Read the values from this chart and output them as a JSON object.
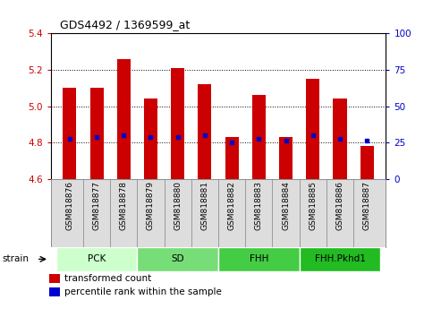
{
  "title": "GDS4492 / 1369599_at",
  "samples": [
    "GSM818876",
    "GSM818877",
    "GSM818878",
    "GSM818879",
    "GSM818880",
    "GSM818881",
    "GSM818882",
    "GSM818883",
    "GSM818884",
    "GSM818885",
    "GSM818886",
    "GSM818887"
  ],
  "transformed_count": [
    5.1,
    5.1,
    5.26,
    5.04,
    5.21,
    5.12,
    4.83,
    5.06,
    4.83,
    5.15,
    5.04,
    4.78
  ],
  "percentile_value": [
    4.82,
    4.83,
    4.84,
    4.83,
    4.83,
    4.84,
    4.8,
    4.82,
    4.81,
    4.84,
    4.82,
    4.81
  ],
  "bar_bottom": 4.6,
  "ylim_left": [
    4.6,
    5.4
  ],
  "ylim_right": [
    0,
    100
  ],
  "yticks_left": [
    4.6,
    4.8,
    5.0,
    5.2,
    5.4
  ],
  "yticks_right": [
    0,
    25,
    50,
    75,
    100
  ],
  "bar_color": "#cc0000",
  "percentile_color": "#0000cc",
  "groups": [
    {
      "label": "PCK",
      "start": 0,
      "end": 3,
      "color": "#ccffcc"
    },
    {
      "label": "SD",
      "start": 3,
      "end": 6,
      "color": "#77dd77"
    },
    {
      "label": "FHH",
      "start": 6,
      "end": 9,
      "color": "#44cc44"
    },
    {
      "label": "FHH.Pkhd1",
      "start": 9,
      "end": 12,
      "color": "#22bb22"
    }
  ],
  "legend_red_label": "transformed count",
  "legend_blue_label": "percentile rank within the sample",
  "strain_label": "strain",
  "tick_label_color_left": "#cc0000",
  "tick_label_color_right": "#0000cc",
  "bar_width": 0.5,
  "grid_lines": [
    4.8,
    5.0,
    5.2
  ],
  "bg_color": "#ffffff",
  "cell_bg": "#dddddd"
}
